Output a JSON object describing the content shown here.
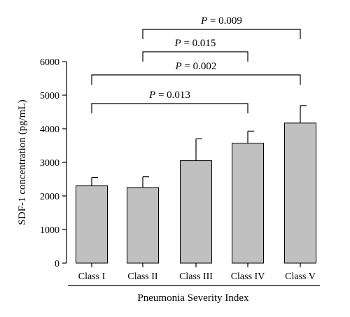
{
  "chart_data": {
    "type": "bar",
    "xlabel": "Pneumonia Severity Index",
    "ylabel": "SDF-1 concentration (pg/mL)",
    "ylim": [
      0,
      6000
    ],
    "yticks": [
      0,
      1000,
      2000,
      3000,
      4000,
      5000,
      6000
    ],
    "categories": [
      "Class I",
      "Class II",
      "Class III",
      "Class IV",
      "Class V"
    ],
    "values": [
      2300,
      2250,
      3050,
      3570,
      4170
    ],
    "error_upper": [
      250,
      320,
      650,
      360,
      520
    ],
    "bar_color": "#c0c0c0",
    "grid": false,
    "significance": [
      {
        "from": "Class II",
        "to": "Class V",
        "label_prefix": "P",
        "label_value": " = 0.009"
      },
      {
        "from": "Class II",
        "to": "Class IV",
        "label_prefix": "P",
        "label_value": " = 0.015"
      },
      {
        "from": "Class I",
        "to": "Class V",
        "label_prefix": "P",
        "label_value": " = 0.002"
      },
      {
        "from": "Class I",
        "to": "Class IV",
        "label_prefix": "P",
        "label_value": " = 0.013"
      }
    ]
  }
}
